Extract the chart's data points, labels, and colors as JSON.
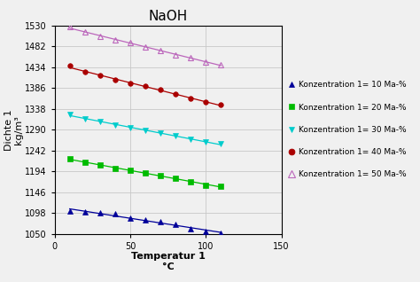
{
  "title": "NaOH",
  "xlabel": "Temperatur 1\n°C",
  "ylabel": "Dichte 1\nkg/m³",
  "xlim": [
    0,
    150
  ],
  "ylim": [
    1050,
    1530
  ],
  "yticks": [
    1050,
    1098,
    1146,
    1194,
    1242,
    1290,
    1338,
    1386,
    1434,
    1482,
    1530
  ],
  "xticks": [
    0,
    50,
    100,
    150
  ],
  "grid_color": "#c8c8c8",
  "background_color": "#f0f0f0",
  "plot_bg": "#f0f0f0",
  "series": [
    {
      "label": "Konzentration 1= 10 Ma-%",
      "color": "#000099",
      "marker": "^",
      "marker_filled": true,
      "markersize": 4,
      "x": [
        10,
        20,
        30,
        40,
        50,
        60,
        70,
        80,
        90,
        100,
        110
      ],
      "y": [
        1103,
        1101,
        1099,
        1096,
        1086,
        1083,
        1078,
        1072,
        1063,
        1057,
        1052
      ]
    },
    {
      "label": "Konzentration 1= 20 Ma-%",
      "color": "#00bb00",
      "marker": "s",
      "marker_filled": true,
      "markersize": 4,
      "x": [
        10,
        20,
        30,
        40,
        50,
        60,
        70,
        80,
        90,
        100,
        110
      ],
      "y": [
        1224,
        1215,
        1208,
        1201,
        1196,
        1191,
        1184,
        1178,
        1170,
        1163,
        1160
      ]
    },
    {
      "label": "Konzentration 1= 30 Ma-%",
      "color": "#00cccc",
      "marker": "v",
      "marker_filled": true,
      "markersize": 4,
      "x": [
        10,
        20,
        30,
        40,
        50,
        60,
        70,
        80,
        90,
        100,
        110
      ],
      "y": [
        1326,
        1316,
        1308,
        1300,
        1294,
        1289,
        1283,
        1276,
        1268,
        1261,
        1258
      ]
    },
    {
      "label": "Konzentration 1= 40 Ma-%",
      "color": "#aa0000",
      "marker": "o",
      "marker_filled": true,
      "markersize": 4,
      "x": [
        10,
        20,
        30,
        40,
        50,
        60,
        70,
        80,
        90,
        100,
        110
      ],
      "y": [
        1437,
        1424,
        1414,
        1404,
        1396,
        1390,
        1382,
        1372,
        1362,
        1353,
        1348
      ]
    },
    {
      "label": "Konzentration 1= 50 Ma-%",
      "color": "#bb66bb",
      "marker": "^",
      "marker_filled": false,
      "markersize": 5,
      "x": [
        10,
        20,
        30,
        40,
        50,
        60,
        70,
        80,
        90,
        100,
        110
      ],
      "y": [
        1527,
        1514,
        1504,
        1497,
        1490,
        1481,
        1472,
        1462,
        1455,
        1445,
        1440
      ]
    }
  ]
}
